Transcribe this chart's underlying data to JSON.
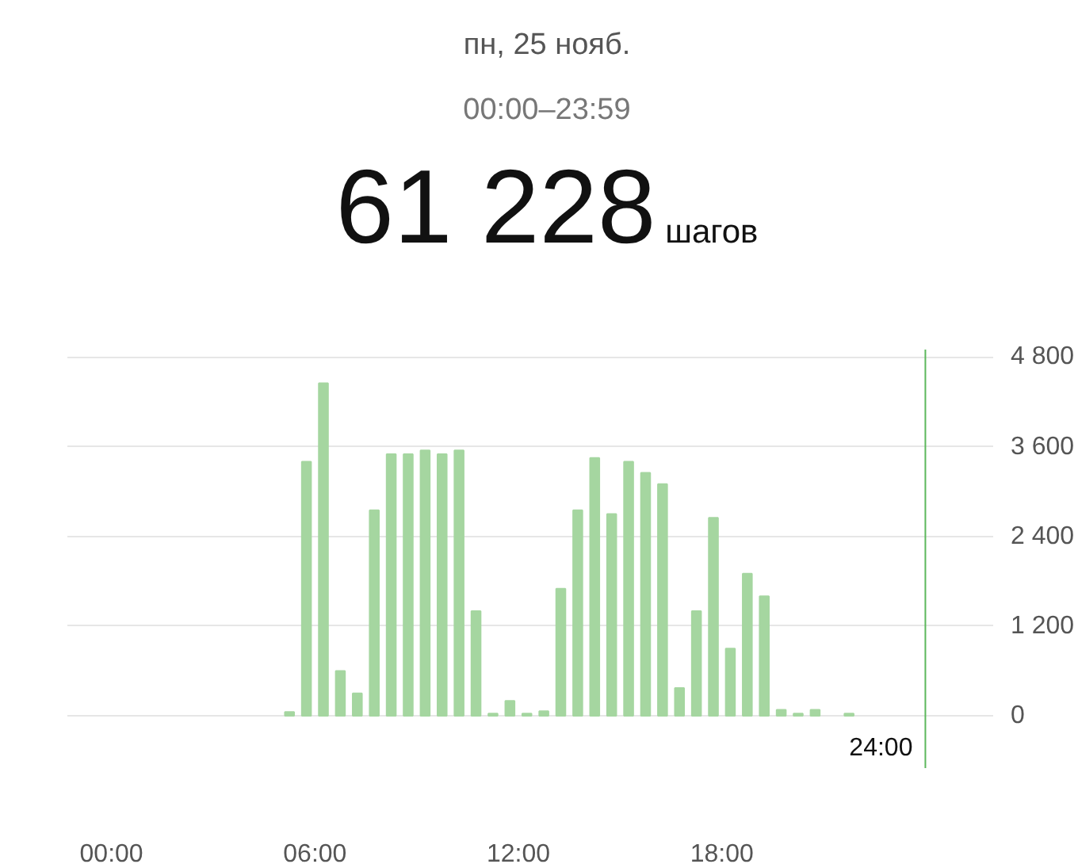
{
  "chart_data": {
    "type": "bar",
    "title": "пн, 25 нояб.",
    "subtitle": "00:00–23:59",
    "annotations": [
      "61 228",
      "шагов"
    ],
    "x": [
      5.25,
      5.75,
      6.25,
      6.75,
      7.25,
      7.75,
      8.25,
      8.75,
      9.25,
      9.75,
      10.25,
      10.75,
      11.25,
      11.75,
      12.25,
      12.75,
      13.25,
      13.75,
      14.25,
      14.75,
      15.25,
      15.75,
      16.25,
      16.75,
      17.25,
      17.75,
      18.25,
      18.75,
      19.25,
      19.75,
      20.25,
      20.75,
      21.75
    ],
    "values": [
      50,
      3400,
      4450,
      600,
      300,
      2750,
      3500,
      3500,
      3550,
      3500,
      3550,
      1400,
      30,
      200,
      30,
      60,
      1700,
      2750,
      3450,
      2700,
      3400,
      3250,
      3100,
      370,
      1400,
      2650,
      900,
      1900,
      1600,
      80,
      30,
      80,
      30
    ],
    "color": "#a5d6a0",
    "xlim": [
      -1.3,
      26
    ],
    "xticks": [
      {
        "value": 0,
        "label": "00:00"
      },
      {
        "value": 6,
        "label": "06:00"
      },
      {
        "value": 12,
        "label": "12:00"
      },
      {
        "value": 18,
        "label": "18:00"
      }
    ],
    "ylim": [
      -700,
      4900
    ],
    "yticks": [
      0,
      {
        "value": 1200,
        "label": "1 200"
      },
      {
        "value": 2400,
        "label": "2 400"
      },
      {
        "value": 3600,
        "label": "3 600"
      },
      {
        "value": 4800,
        "label": "4 800"
      }
    ],
    "ref_lines": [
      {
        "axis": "x",
        "value": 24,
        "label": "24:00",
        "color": "#5cb85c"
      }
    ],
    "grid": "y"
  }
}
